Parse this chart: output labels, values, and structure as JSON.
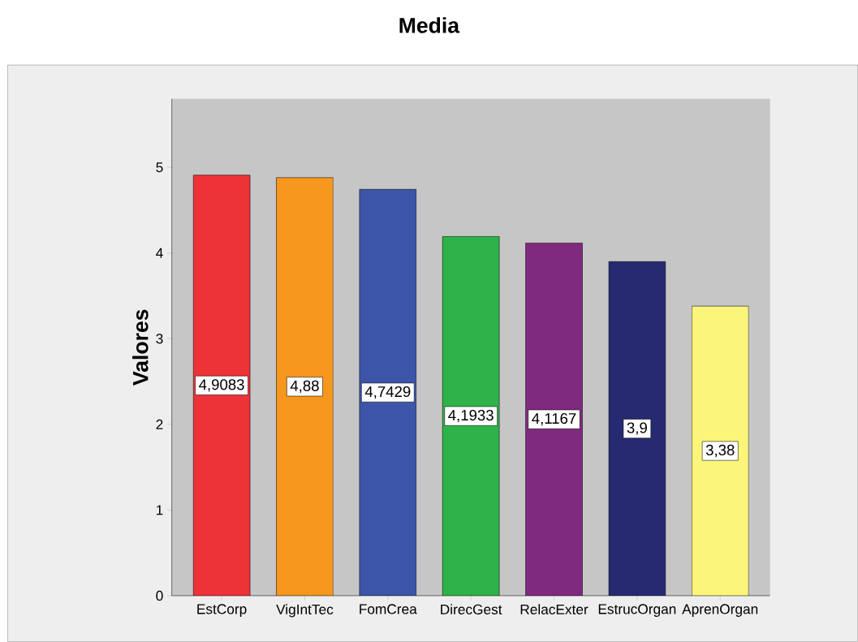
{
  "chart_data": {
    "type": "bar",
    "title": "Media",
    "ylabel": "Valores",
    "categories": [
      "EstCorp",
      "VigIntTec",
      "FomCrea",
      "DirecGest",
      "RelacExter",
      "EstrucOrgan",
      "AprenOrgan"
    ],
    "values": [
      4.9083,
      4.88,
      4.7429,
      4.1933,
      4.1167,
      3.9,
      3.38
    ],
    "colors": [
      "#ee3338",
      "#f7971e",
      "#3c55a8",
      "#2db34a",
      "#7f2a7e",
      "#262a70",
      "#fbf579"
    ],
    "value_labels": [
      "4,9083",
      "4,88",
      "4,7429",
      "4,1933",
      "4,1167",
      "3,9",
      "3,38"
    ],
    "ylim": [
      0,
      5.8
    ],
    "yticks": [
      0,
      1,
      2,
      3,
      4,
      5
    ]
  }
}
